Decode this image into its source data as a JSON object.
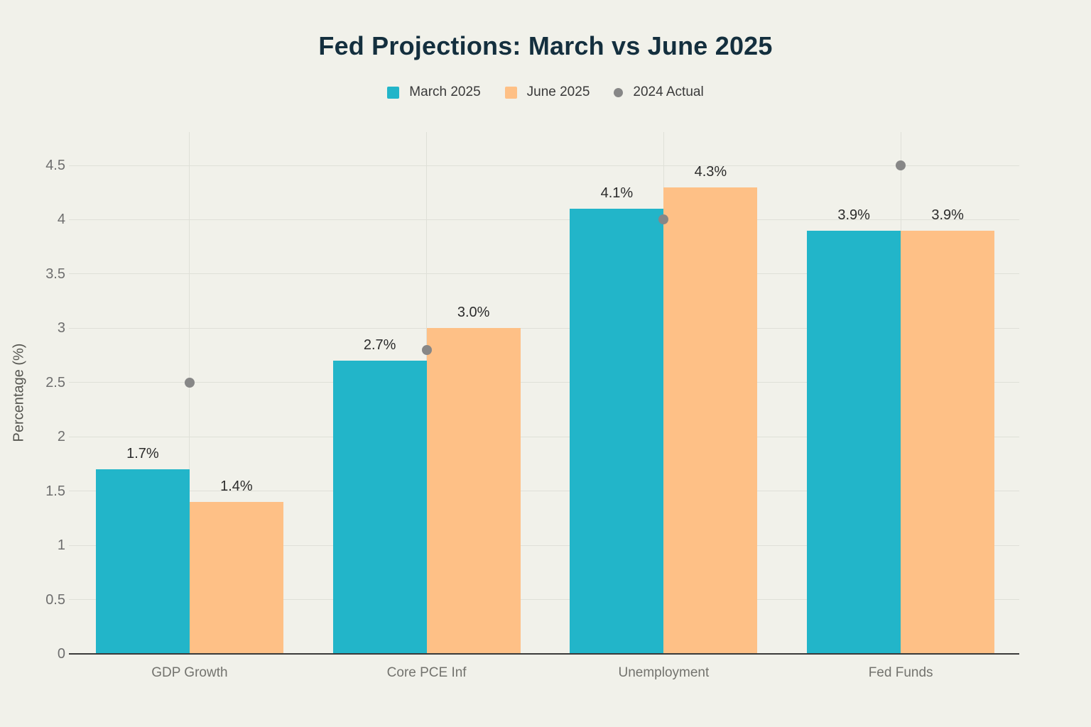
{
  "chart_data": {
    "type": "bar",
    "title": "Fed Projections: March vs June 2025",
    "ylabel": "Percentage (%)",
    "categories": [
      "GDP Growth",
      "Core PCE Inf",
      "Unemployment",
      "Fed Funds"
    ],
    "series": [
      {
        "name": "March 2025",
        "color": "#22b5c9",
        "values": [
          1.7,
          2.7,
          4.1,
          3.9
        ],
        "labels": [
          "1.7%",
          "2.7%",
          "4.1%",
          "3.9%"
        ]
      },
      {
        "name": "June 2025",
        "color": "#fec086",
        "values": [
          1.4,
          3.0,
          4.3,
          3.9
        ],
        "labels": [
          "1.4%",
          "3.0%",
          "4.3%",
          "3.9%"
        ]
      }
    ],
    "scatter_series": {
      "name": "2024 Actual",
      "color": "#878787",
      "values": [
        2.5,
        2.8,
        4.0,
        4.5
      ]
    },
    "yticks": [
      "0",
      "0.5",
      "1",
      "1.5",
      "2",
      "2.5",
      "3",
      "3.5",
      "4",
      "4.5"
    ],
    "ylim": [
      0,
      4.8
    ],
    "grid": true,
    "legend_position": "top",
    "colors": {
      "background": "#f1f1ea",
      "gridline": "#dfe0d8",
      "axis_line": "#3a3a3a",
      "tick_text": "#6e6e6e",
      "title_text": "#142f3e",
      "value_label_text": "#2b2b2b"
    }
  }
}
